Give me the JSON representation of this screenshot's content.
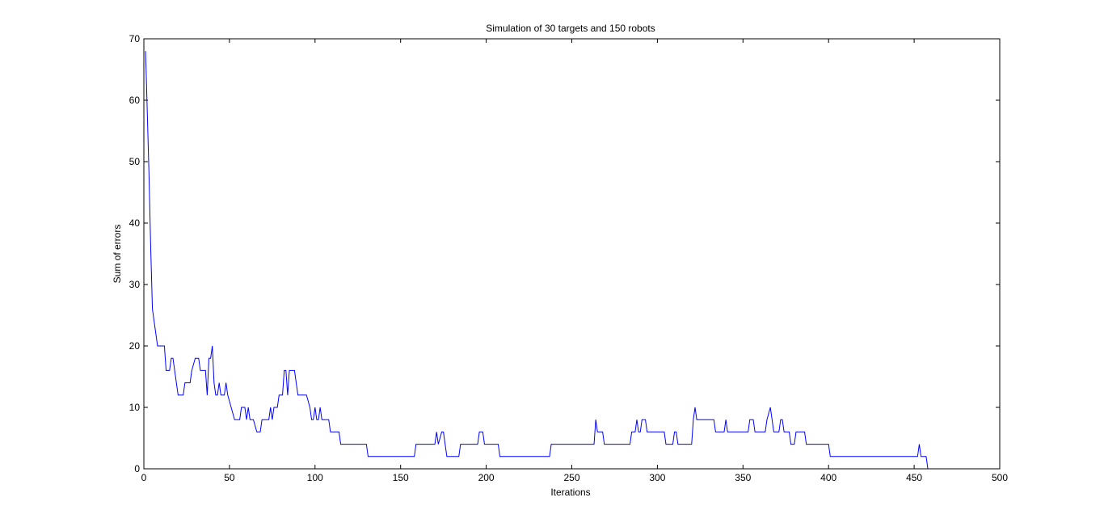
{
  "colors": {
    "background": "#ffffff",
    "axes": "#000000",
    "line": "#0000ff"
  },
  "chart_data": {
    "type": "line",
    "title": "Simulation of 30 targets and 150 robots",
    "xlabel": "Iterations",
    "ylabel": "Sum of errors",
    "xlim": [
      0,
      500
    ],
    "ylim": [
      0,
      70
    ],
    "xticks": [
      0,
      50,
      100,
      150,
      200,
      250,
      300,
      350,
      400,
      450,
      500
    ],
    "yticks": [
      0,
      10,
      20,
      30,
      40,
      50,
      60,
      70
    ],
    "grid": false,
    "legend": "none",
    "series": [
      {
        "points": [
          [
            1,
            68
          ],
          [
            2,
            58
          ],
          [
            3,
            48
          ],
          [
            4,
            36
          ],
          [
            5,
            26
          ],
          [
            6,
            24
          ],
          [
            7,
            22
          ],
          [
            8,
            20
          ],
          [
            12,
            20
          ],
          [
            13,
            16
          ],
          [
            15,
            16
          ],
          [
            16,
            18
          ],
          [
            17,
            18
          ],
          [
            19,
            14
          ],
          [
            20,
            12
          ],
          [
            23,
            12
          ],
          [
            24,
            14
          ],
          [
            27,
            14
          ],
          [
            28,
            16
          ],
          [
            30,
            18
          ],
          [
            32,
            18
          ],
          [
            33,
            16
          ],
          [
            36,
            16
          ],
          [
            37,
            12
          ],
          [
            38,
            18
          ],
          [
            39,
            18
          ],
          [
            40,
            20
          ],
          [
            41,
            14
          ],
          [
            42,
            12
          ],
          [
            43,
            12
          ],
          [
            44,
            14
          ],
          [
            45,
            12
          ],
          [
            47,
            12
          ],
          [
            48,
            14
          ],
          [
            49,
            12
          ],
          [
            51,
            10
          ],
          [
            53,
            8
          ],
          [
            56,
            8
          ],
          [
            57,
            10
          ],
          [
            59,
            10
          ],
          [
            60,
            8
          ],
          [
            61,
            10
          ],
          [
            62,
            8
          ],
          [
            64,
            8
          ],
          [
            66,
            6
          ],
          [
            68,
            6
          ],
          [
            69,
            8
          ],
          [
            73,
            8
          ],
          [
            74,
            10
          ],
          [
            75,
            8
          ],
          [
            76,
            10
          ],
          [
            78,
            10
          ],
          [
            79,
            12
          ],
          [
            81,
            12
          ],
          [
            82,
            16
          ],
          [
            83,
            16
          ],
          [
            84,
            12
          ],
          [
            85,
            16
          ],
          [
            88,
            16
          ],
          [
            89,
            14
          ],
          [
            90,
            12
          ],
          [
            95,
            12
          ],
          [
            97,
            10
          ],
          [
            98,
            8
          ],
          [
            99,
            8
          ],
          [
            100,
            10
          ],
          [
            101,
            8
          ],
          [
            102,
            8
          ],
          [
            103,
            10
          ],
          [
            104,
            8
          ],
          [
            108,
            8
          ],
          [
            109,
            6
          ],
          [
            114,
            6
          ],
          [
            115,
            4
          ],
          [
            130,
            4
          ],
          [
            131,
            2
          ],
          [
            158,
            2
          ],
          [
            159,
            4
          ],
          [
            170,
            4
          ],
          [
            171,
            6
          ],
          [
            172,
            4
          ],
          [
            174,
            6
          ],
          [
            175,
            6
          ],
          [
            177,
            2
          ],
          [
            184,
            2
          ],
          [
            185,
            4
          ],
          [
            195,
            4
          ],
          [
            196,
            6
          ],
          [
            198,
            6
          ],
          [
            199,
            4
          ],
          [
            207,
            4
          ],
          [
            208,
            2
          ],
          [
            237,
            2
          ],
          [
            238,
            4
          ],
          [
            263,
            4
          ],
          [
            264,
            8
          ],
          [
            265,
            6
          ],
          [
            268,
            6
          ],
          [
            269,
            4
          ],
          [
            284,
            4
          ],
          [
            285,
            6
          ],
          [
            287,
            6
          ],
          [
            288,
            8
          ],
          [
            289,
            6
          ],
          [
            290,
            6
          ],
          [
            291,
            8
          ],
          [
            293,
            8
          ],
          [
            294,
            6
          ],
          [
            304,
            6
          ],
          [
            305,
            4
          ],
          [
            309,
            4
          ],
          [
            310,
            6
          ],
          [
            311,
            6
          ],
          [
            312,
            4
          ],
          [
            320,
            4
          ],
          [
            321,
            8
          ],
          [
            322,
            10
          ],
          [
            323,
            8
          ],
          [
            333,
            8
          ],
          [
            334,
            6
          ],
          [
            339,
            6
          ],
          [
            340,
            8
          ],
          [
            341,
            6
          ],
          [
            353,
            6
          ],
          [
            354,
            8
          ],
          [
            356,
            8
          ],
          [
            357,
            6
          ],
          [
            363,
            6
          ],
          [
            364,
            8
          ],
          [
            366,
            10
          ],
          [
            367,
            8
          ],
          [
            368,
            6
          ],
          [
            371,
            6
          ],
          [
            372,
            8
          ],
          [
            373,
            8
          ],
          [
            374,
            6
          ],
          [
            377,
            6
          ],
          [
            378,
            4
          ],
          [
            380,
            4
          ],
          [
            381,
            6
          ],
          [
            386,
            6
          ],
          [
            387,
            4
          ],
          [
            400,
            4
          ],
          [
            401,
            2
          ],
          [
            452,
            2
          ],
          [
            453,
            4
          ],
          [
            454,
            2
          ],
          [
            457,
            2
          ],
          [
            458,
            0
          ]
        ]
      }
    ]
  }
}
